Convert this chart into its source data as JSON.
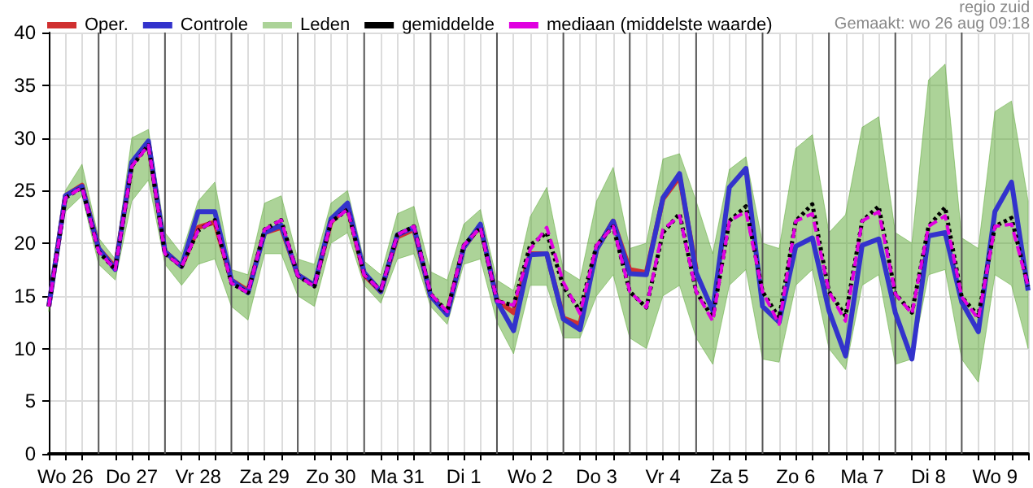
{
  "chart_data": {
    "type": "line",
    "annotations": [
      "regio zuid",
      "Gemaakt: wo 26 aug 09:18"
    ],
    "x": [
      "--08-26T06:00",
      "--08-26T12:00",
      "--08-26T18:00",
      "--08-27T00:00",
      "--08-27T06:00",
      "--08-27T12:00",
      "--08-27T18:00",
      "--08-28T00:00",
      "--08-28T06:00",
      "--08-28T12:00",
      "--08-28T18:00",
      "--08-29T00:00",
      "--08-29T06:00",
      "--08-29T12:00",
      "--08-29T18:00",
      "--08-30T00:00",
      "--08-30T06:00",
      "--08-30T12:00",
      "--08-30T18:00",
      "--08-31T00:00",
      "--08-31T06:00",
      "--08-31T12:00",
      "--08-31T18:00",
      "--09-01T00:00",
      "--09-01T06:00",
      "--09-01T12:00",
      "--09-01T18:00",
      "--09-02T00:00",
      "--09-02T06:00",
      "--09-02T12:00",
      "--09-02T18:00",
      "--09-03T00:00",
      "--09-03T06:00",
      "--09-03T12:00",
      "--09-03T18:00",
      "--09-04T00:00",
      "--09-04T06:00",
      "--09-04T12:00",
      "--09-04T18:00",
      "--09-05T00:00",
      "--09-05T06:00",
      "--09-05T12:00",
      "--09-05T18:00",
      "--09-06T00:00",
      "--09-06T06:00",
      "--09-06T12:00",
      "--09-06T18:00",
      "--09-07T00:00",
      "--09-07T06:00",
      "--09-07T12:00",
      "--09-07T18:00",
      "--09-08T00:00",
      "--09-08T06:00",
      "--09-08T12:00",
      "--09-08T18:00",
      "--09-09T00:00",
      "--09-09T06:00",
      "--09-09T12:00",
      "--09-09T18:00",
      "--09-10T00:00"
    ],
    "series": [
      {
        "name": "Oper.",
        "color": "#d03030",
        "line_style": "solid",
        "values": [
          14,
          24.5,
          25.5,
          19.5,
          17.7,
          27.5,
          29.5,
          19.2,
          17.8,
          21.5,
          22,
          16.5,
          15.5,
          21,
          21.5,
          17,
          16,
          22,
          23.5,
          17,
          15.4,
          20.6,
          21.3,
          15,
          13.4,
          19.6,
          21.7,
          14.6,
          13.4,
          19,
          19,
          12.9,
          12.3,
          19.4,
          22.1,
          17.5,
          17.2,
          24.2,
          26.3,
          17.5,
          null,
          null,
          null,
          null,
          null,
          null,
          null,
          null,
          null,
          null,
          null,
          null,
          null,
          null,
          null,
          null,
          null,
          null,
          null,
          null
        ]
      },
      {
        "name": "Controle",
        "color": "#3333cc",
        "line_style": "solid",
        "values": [
          14,
          24.5,
          25.4,
          19.5,
          17.5,
          27.7,
          29.7,
          19.2,
          17.8,
          23,
          23,
          16.5,
          15.3,
          21,
          21.7,
          17,
          16,
          22.3,
          23.8,
          17.2,
          15.4,
          20.8,
          21.5,
          15,
          13.2,
          19.6,
          21.8,
          14.5,
          11.7,
          18.9,
          19,
          12.8,
          11.8,
          19.4,
          22.1,
          17.1,
          17,
          24.3,
          26.6,
          17.2,
          13.6,
          25.3,
          27.1,
          14,
          12.5,
          19.7,
          20.5,
          13.6,
          9.3,
          19.8,
          20.4,
          13.4,
          9,
          20.7,
          21,
          14.4,
          11.6,
          23,
          25.8,
          15.5
        ]
      },
      {
        "name": "Leden",
        "color": "#5aa832",
        "values": [
          null,
          null,
          null,
          null,
          null,
          null,
          null,
          null,
          null,
          null,
          null,
          null,
          null,
          null,
          null,
          null,
          null,
          null,
          null,
          null,
          null,
          null,
          null,
          null,
          null,
          null,
          null,
          null,
          null,
          null,
          null,
          null,
          null,
          null,
          null,
          null,
          null,
          null,
          null,
          null,
          null,
          null,
          null,
          null,
          null,
          null,
          null,
          null,
          null,
          null,
          null,
          null,
          null,
          null,
          null,
          null,
          null,
          null,
          null,
          null
        ],
        "lower": [
          13.5,
          23,
          24.5,
          18,
          16.5,
          24,
          26,
          18,
          16,
          18,
          18.5,
          14,
          12.7,
          19,
          19,
          15,
          14,
          20,
          21,
          16,
          14.3,
          18.5,
          19,
          14,
          12.3,
          18,
          18.5,
          12.5,
          9.5,
          16,
          16,
          11,
          11,
          15,
          17,
          11,
          10,
          15,
          16,
          11,
          8.5,
          16,
          17.5,
          9,
          8.7,
          16,
          17.5,
          10,
          8,
          16,
          17,
          8.5,
          9,
          17,
          17.5,
          9,
          6.8,
          17,
          16,
          10
        ],
        "upper": [
          15,
          25,
          27.5,
          20.5,
          18.5,
          30,
          30.8,
          21,
          19,
          24,
          25.8,
          17.5,
          17,
          23.8,
          24.5,
          18.5,
          18,
          23.8,
          25,
          18.3,
          17,
          22.8,
          23.5,
          17.3,
          16.5,
          21.8,
          23.2,
          16.5,
          15.5,
          22.5,
          25.3,
          17.5,
          16.5,
          24,
          27.2,
          19.5,
          20,
          28,
          28.5,
          24,
          19,
          27,
          28.2,
          20,
          19.5,
          29,
          30.3,
          21,
          22.7,
          31,
          32,
          21,
          20,
          35.5,
          37,
          20.5,
          19.5,
          32.5,
          33.5,
          24
        ]
      },
      {
        "name": "gemiddelde",
        "color": "#000000",
        "line_style": "dotted",
        "values": [
          14,
          24.3,
          25.3,
          19.2,
          17.5,
          27.3,
          29.3,
          19,
          17.8,
          21.2,
          22.2,
          16.2,
          15.3,
          21.3,
          22.2,
          16.9,
          15.9,
          22,
          23.2,
          17,
          15.5,
          20.8,
          21.6,
          15.2,
          13.5,
          19.8,
          21.5,
          14.5,
          14.1,
          19.8,
          21,
          15.9,
          13.6,
          19.8,
          21.6,
          15.4,
          13.9,
          21,
          22.8,
          15.4,
          12.9,
          22.1,
          23.5,
          15.4,
          12.9,
          22.1,
          23.7,
          15.4,
          13.1,
          22.1,
          23.5,
          15.2,
          13.4,
          21.6,
          23.4,
          14.9,
          13.1,
          21.6,
          22.4,
          15.9
        ]
      },
      {
        "name": "mediaan (middelste waarde)",
        "color": "#e000e0",
        "line_style": "dashed",
        "values": [
          14,
          24.3,
          25.3,
          19.2,
          17.5,
          27.3,
          29.3,
          19,
          17.8,
          21.2,
          22.2,
          16.2,
          15.3,
          21.3,
          22.2,
          16.9,
          15.9,
          22,
          23.2,
          17,
          15.5,
          20.8,
          21.6,
          15.2,
          13.5,
          19.8,
          21.5,
          14.5,
          14.1,
          19.4,
          21.5,
          16.3,
          13.3,
          19.8,
          21.6,
          15.4,
          13.9,
          21.3,
          22.6,
          15.4,
          12.6,
          22.1,
          23,
          15.4,
          12.3,
          22.1,
          22.8,
          15.4,
          12.6,
          22.1,
          23,
          15.2,
          13.3,
          21.6,
          22.6,
          14.9,
          12.8,
          21.6,
          21.8,
          15.9
        ]
      }
    ],
    "xlim": [
      "--08-26T06:00",
      "--09-10T00:00"
    ],
    "xticks": [
      {
        "value": "--08-26T06:00",
        "label": null
      },
      {
        "value": "--08-26T12:00",
        "label": "Wo 26"
      },
      {
        "value": "--08-26T18:00",
        "label": null
      },
      {
        "value": "--08-27T06:00",
        "label": null
      },
      {
        "value": "--08-27T12:00",
        "label": "Do 27"
      },
      {
        "value": "--08-27T18:00",
        "label": null
      },
      {
        "value": "--08-28T06:00",
        "label": null
      },
      {
        "value": "--08-28T12:00",
        "label": "Vr 28"
      },
      {
        "value": "--08-28T18:00",
        "label": null
      },
      {
        "value": "--08-29T06:00",
        "label": null
      },
      {
        "value": "--08-29T12:00",
        "label": "Za 29"
      },
      {
        "value": "--08-29T18:00",
        "label": null
      },
      {
        "value": "--08-30T06:00",
        "label": null
      },
      {
        "value": "--08-30T12:00",
        "label": "Zo 30"
      },
      {
        "value": "--08-30T18:00",
        "label": null
      },
      {
        "value": "--08-31T06:00",
        "label": null
      },
      {
        "value": "--08-31T12:00",
        "label": "Ma 31"
      },
      {
        "value": "--08-31T18:00",
        "label": null
      },
      {
        "value": "--09-01T06:00",
        "label": null
      },
      {
        "value": "--09-01T12:00",
        "label": "Di 1"
      },
      {
        "value": "--09-01T18:00",
        "label": null
      },
      {
        "value": "--09-02T06:00",
        "label": null
      },
      {
        "value": "--09-02T12:00",
        "label": "Wo 2"
      },
      {
        "value": "--09-02T18:00",
        "label": null
      },
      {
        "value": "--09-03T06:00",
        "label": null
      },
      {
        "value": "--09-03T12:00",
        "label": "Do 3"
      },
      {
        "value": "--09-03T18:00",
        "label": null
      },
      {
        "value": "--09-04T06:00",
        "label": null
      },
      {
        "value": "--09-04T12:00",
        "label": "Vr 4"
      },
      {
        "value": "--09-04T18:00",
        "label": null
      },
      {
        "value": "--09-05T06:00",
        "label": null
      },
      {
        "value": "--09-05T12:00",
        "label": "Za 5"
      },
      {
        "value": "--09-05T18:00",
        "label": null
      },
      {
        "value": "--09-06T06:00",
        "label": null
      },
      {
        "value": "--09-06T12:00",
        "label": "Zo 6"
      },
      {
        "value": "--09-06T18:00",
        "label": null
      },
      {
        "value": "--09-07T06:00",
        "label": null
      },
      {
        "value": "--09-07T12:00",
        "label": "Ma 7"
      },
      {
        "value": "--09-07T18:00",
        "label": null
      },
      {
        "value": "--09-08T06:00",
        "label": null
      },
      {
        "value": "--09-08T12:00",
        "label": "Di 8"
      },
      {
        "value": "--09-08T18:00",
        "label": null
      },
      {
        "value": "--09-09T06:00",
        "label": null
      },
      {
        "value": "--09-09T12:00",
        "label": "Wo 9"
      },
      {
        "value": "--09-09T18:00",
        "label": null
      },
      {
        "value": "--09-10T00:00",
        "label": null
      }
    ],
    "ylim": [
      0,
      40
    ],
    "yticks": [
      0,
      5,
      10,
      15,
      20,
      25,
      30,
      35,
      40
    ],
    "ref_lines": [
      {
        "axis": "x",
        "value": "--08-27T00:00",
        "color": "#555555"
      },
      {
        "axis": "x",
        "value": "--08-28T00:00",
        "color": "#555555"
      },
      {
        "axis": "x",
        "value": "--08-29T00:00",
        "color": "#555555"
      },
      {
        "axis": "x",
        "value": "--08-30T00:00",
        "color": "#555555"
      },
      {
        "axis": "x",
        "value": "--08-31T00:00",
        "color": "#555555"
      },
      {
        "axis": "x",
        "value": "--09-01T00:00",
        "color": "#555555"
      },
      {
        "axis": "x",
        "value": "--09-02T00:00",
        "color": "#555555"
      },
      {
        "axis": "x",
        "value": "--09-03T00:00",
        "color": "#555555"
      },
      {
        "axis": "x",
        "value": "--09-04T00:00",
        "color": "#555555"
      },
      {
        "axis": "x",
        "value": "--09-05T00:00",
        "color": "#555555"
      },
      {
        "axis": "x",
        "value": "--09-06T00:00",
        "color": "#555555"
      },
      {
        "axis": "x",
        "value": "--09-07T00:00",
        "color": "#555555"
      },
      {
        "axis": "x",
        "value": "--09-08T00:00",
        "color": "#555555"
      },
      {
        "axis": "x",
        "value": "--09-09T00:00",
        "color": "#555555"
      }
    ],
    "grid": true,
    "legend": "top left",
    "marker": "none"
  }
}
